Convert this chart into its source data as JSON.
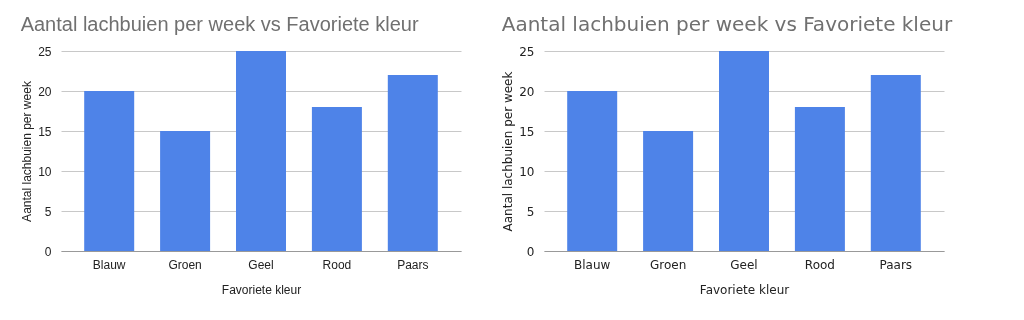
{
  "chart_data": [
    {
      "type": "bar",
      "title": "Aantal lachbuien per week vs Favoriete kleur",
      "xlabel": "Favoriete kleur",
      "ylabel": "Aantal lachbuien per week",
      "categories": [
        "Blauw",
        "Groen",
        "Geel",
        "Rood",
        "Paars"
      ],
      "values": [
        20,
        15,
        25,
        18,
        22
      ],
      "color": "#4e83e8",
      "ylim": [
        0,
        25
      ],
      "yticks": [
        0,
        5,
        10,
        15,
        20,
        25
      ],
      "grid": "y",
      "legend": false
    },
    {
      "type": "bar",
      "title": "Aantal lachbuien per week vs Favoriete kleur",
      "xlabel": "Favoriete kleur",
      "ylabel": "Aantal lachbuien per week",
      "categories": [
        "Blauw",
        "Groen",
        "Geel",
        "Rood",
        "Paars"
      ],
      "values": [
        20,
        15,
        25,
        18,
        22
      ],
      "color": "#4e83e8",
      "ylim": [
        0,
        25
      ],
      "yticks": [
        0,
        5,
        10,
        15,
        20,
        25
      ],
      "grid": "y",
      "legend": false
    }
  ]
}
